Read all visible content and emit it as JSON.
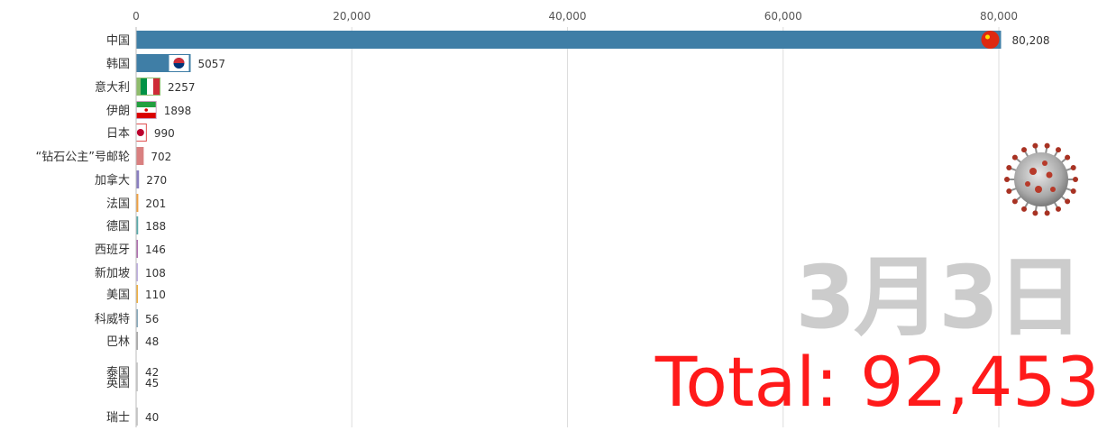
{
  "chart_data": {
    "type": "bar",
    "orientation": "horizontal",
    "categories": [
      "中国",
      "韩国",
      "意大利",
      "伊朗",
      "日本",
      "“钻石公主”号邮轮",
      "加拿大",
      "法国",
      "德国",
      "西班牙",
      "新加坡",
      "美国",
      "科威特",
      "巴林",
      "泰国",
      "英国",
      "瑞士"
    ],
    "values": [
      80208,
      5057,
      2257,
      1898,
      990,
      702,
      270,
      201,
      188,
      146,
      108,
      110,
      56,
      48,
      42,
      45,
      40
    ],
    "value_labels": [
      "80,208",
      "5057",
      "2257",
      "1898",
      "990",
      "702",
      "270",
      "201",
      "188",
      "146",
      "108",
      "110",
      "56",
      "48",
      "42",
      "45",
      "40"
    ],
    "xticks": [
      0,
      20000,
      40000,
      60000,
      80000
    ],
    "xtick_labels": [
      "0",
      "20,000",
      "40,000",
      "60,000",
      "80,000"
    ],
    "xlim": [
      0,
      88000
    ],
    "grid": true,
    "bar_colors": [
      "#3f7ea6",
      "#3f7ea6",
      "#8fbc6c",
      "#c8a0c0",
      "#e05050",
      "#d98080",
      "#8a7fc0",
      "#f0a040",
      "#5aaaaa",
      "#b070b0",
      "#c0b0e0",
      "#f0b040",
      "#88aabb",
      "#aaaaaa",
      "#cccccc",
      "#cccccc",
      "#cccccc"
    ],
    "flag_icons": [
      "china-flag-icon",
      "korea-flag-icon",
      "italy-flag-icon",
      "iran-flag-icon",
      "japan-flag-icon"
    ]
  },
  "overlay": {
    "date": "3月3日",
    "total": "Total: 92,453",
    "virus_icon": "coronavirus-icon"
  }
}
